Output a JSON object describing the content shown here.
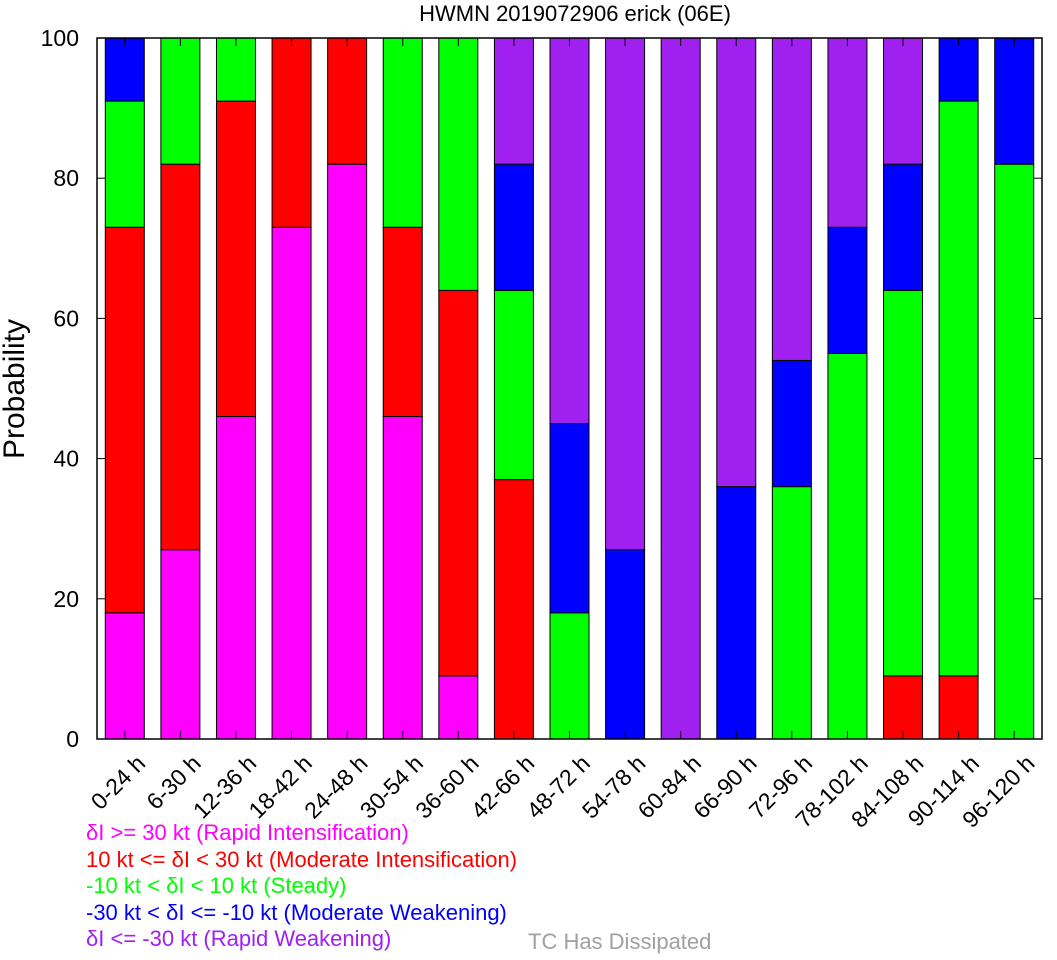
{
  "chart_data": {
    "type": "bar",
    "stacked": true,
    "title": "HWMN 2019072906 erick (06E)",
    "ylabel": "Probability",
    "xlabel": "",
    "ylim": [
      0,
      100
    ],
    "yticks": [
      0,
      20,
      40,
      60,
      80,
      100
    ],
    "categories": [
      "0-24 h",
      "6-30 h",
      "12-36 h",
      "18-42 h",
      "24-48 h",
      "30-54 h",
      "36-60 h",
      "42-66 h",
      "48-72 h",
      "54-78 h",
      "60-84 h",
      "66-90 h",
      "72-96 h",
      "78-102 h",
      "84-108 h",
      "90-114 h",
      "96-120 h"
    ],
    "series": [
      {
        "key": "ri",
        "color": "#ff00ff",
        "values": [
          18,
          27,
          46,
          73,
          82,
          46,
          9,
          0,
          0,
          0,
          0,
          0,
          0,
          0,
          0,
          0,
          0
        ]
      },
      {
        "key": "mi",
        "color": "#ff0000",
        "values": [
          55,
          55,
          45,
          27,
          18,
          27,
          55,
          37,
          0,
          0,
          0,
          0,
          0,
          0,
          9,
          9,
          0
        ]
      },
      {
        "key": "st",
        "color": "#00ff00",
        "values": [
          18,
          18,
          9,
          0,
          0,
          27,
          36,
          27,
          18,
          0,
          0,
          0,
          36,
          55,
          55,
          82,
          82
        ]
      },
      {
        "key": "mw",
        "color": "#0000ff",
        "values": [
          9,
          0,
          0,
          0,
          0,
          0,
          0,
          18,
          27,
          27,
          0,
          36,
          18,
          18,
          18,
          9,
          18
        ]
      },
      {
        "key": "rw",
        "color": "#a020f0",
        "values": [
          0,
          0,
          0,
          0,
          0,
          0,
          0,
          18,
          55,
          73,
          100,
          64,
          46,
          27,
          18,
          0,
          0
        ]
      }
    ],
    "legend": {
      "placement": "bottom-left",
      "entries": [
        {
          "key": "ri",
          "color": "#ff00ff",
          "text": "δI >= 30 kt (Rapid Intensification)"
        },
        {
          "key": "mi",
          "color": "#ff0000",
          "text": "10 kt <= δI < 30 kt (Moderate Intensification)"
        },
        {
          "key": "st",
          "color": "#00ff00",
          "text": "-10 kt < δI < 10 kt (Steady)"
        },
        {
          "key": "mw",
          "color": "#0000ff",
          "text": "-30 kt < δI <= -10 kt (Moderate Weakening)"
        },
        {
          "key": "rw",
          "color": "#a020f0",
          "text": "δI <= -30 kt (Rapid Weakening)"
        }
      ],
      "dissipated": {
        "text": "TC Has Dissipated",
        "color": "#a0a0a0"
      }
    },
    "grid": false
  }
}
